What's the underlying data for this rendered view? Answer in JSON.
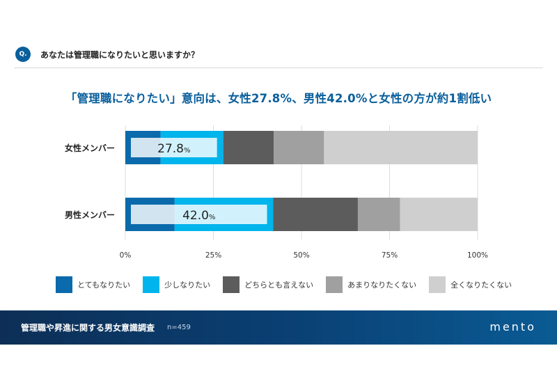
{
  "question": {
    "badge": "Q.",
    "text": "あなたは管理職になりたいと思いますか？"
  },
  "headline": "「管理職になりたい」意向は、女性27.8%、男性42.0%と女性の方が約1割低い",
  "chart_data": {
    "type": "bar",
    "orientation": "horizontal",
    "stacked": true,
    "categories": [
      "女性メンバー",
      "男性メンバー"
    ],
    "series": [
      {
        "name": "とてもなりたい",
        "color": "#0a6aab",
        "values": [
          10.0,
          14.0
        ]
      },
      {
        "name": "少しなりたい",
        "color": "#00b4ec",
        "values": [
          17.8,
          28.0
        ]
      },
      {
        "name": "どちらとも言えない",
        "color": "#5c5c5c",
        "values": [
          14.3,
          24.0
        ]
      },
      {
        "name": "あまりなりたくない",
        "color": "#a0a0a0",
        "values": [
          14.3,
          12.0
        ]
      },
      {
        "name": "全くなりたくない",
        "color": "#cfcfcf",
        "values": [
          43.6,
          22.0
        ]
      }
    ],
    "highlight_labels": [
      {
        "value": "27.8",
        "unit": "%"
      },
      {
        "value": "42.0",
        "unit": "%"
      }
    ],
    "xlim": [
      0,
      100
    ],
    "x_ticks": [
      "0%",
      "25%",
      "50%",
      "75%",
      "100%"
    ],
    "grid": true,
    "legend_position": "bottom"
  },
  "footer": {
    "title": "管理職や昇進に関する男女意識調査",
    "n": "n=459",
    "logo": "mento"
  }
}
